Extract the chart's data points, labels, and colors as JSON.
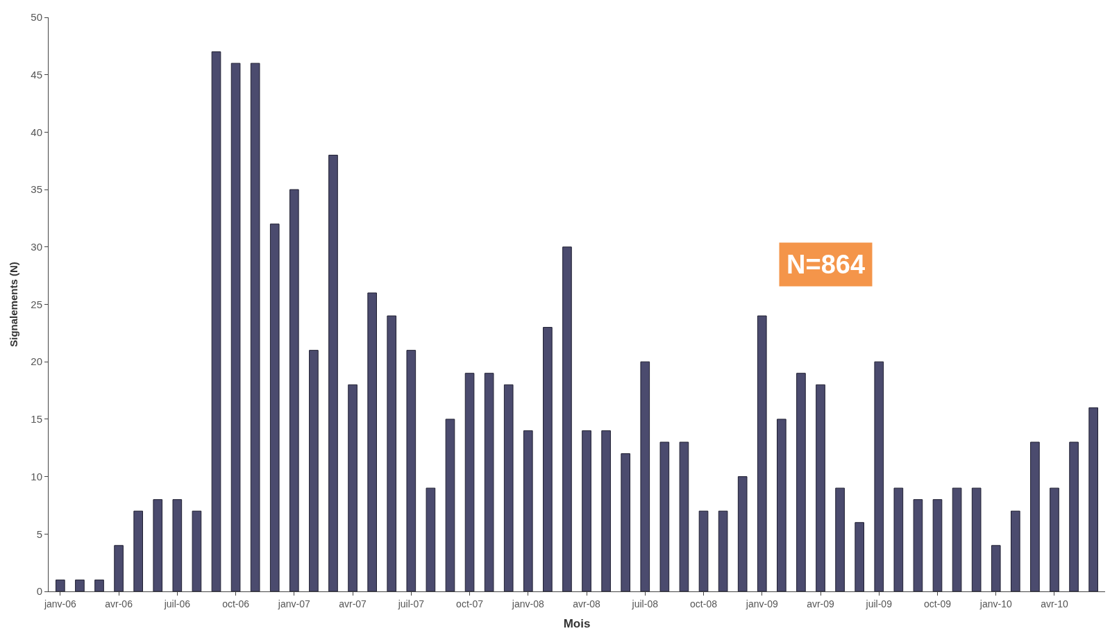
{
  "chart_data": {
    "type": "bar",
    "xlabel": "Mois",
    "ylabel": "Signalements (N)",
    "categories": [
      "janv-06",
      null,
      null,
      "avr-06",
      null,
      null,
      "juil-06",
      null,
      null,
      "oct-06",
      null,
      null,
      "janv-07",
      null,
      null,
      "avr-07",
      null,
      null,
      "juil-07",
      null,
      null,
      "oct-07",
      null,
      null,
      "janv-08",
      null,
      null,
      "avr-08",
      null,
      null,
      "juil-08",
      null,
      null,
      "oct-08",
      null,
      null,
      "janv-09",
      null,
      null,
      "avr-09",
      null,
      null,
      "juil-09",
      null,
      null,
      "oct-09",
      null,
      null,
      "janv-10",
      null,
      null,
      "avr-10",
      null,
      null
    ],
    "values": [
      1,
      1,
      1,
      4,
      7,
      8,
      8,
      7,
      47,
      46,
      46,
      32,
      35,
      21,
      38,
      18,
      26,
      24,
      21,
      9,
      15,
      19,
      19,
      18,
      14,
      23,
      30,
      14,
      14,
      12,
      20,
      13,
      13,
      7,
      7,
      10,
      24,
      15,
      19,
      18,
      9,
      6,
      20,
      9,
      8,
      8,
      9,
      9,
      4,
      7,
      13,
      9,
      13,
      16
    ],
    "color": "#4b4b6e",
    "ylim": [
      0,
      50
    ],
    "yticks": [
      0,
      5,
      10,
      15,
      20,
      25,
      30,
      35,
      40,
      45,
      50
    ],
    "annotations": [
      "N=864"
    ]
  }
}
